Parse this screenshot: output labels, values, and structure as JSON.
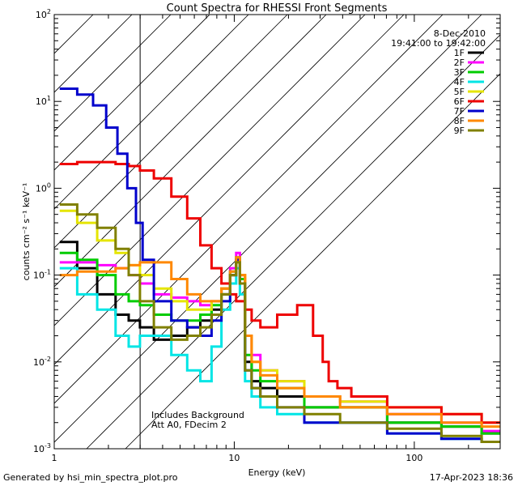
{
  "chart_data": {
    "type": "line",
    "title": "Count Spectra for RHESSI Front Segments",
    "xlabel": "Energy (keV)",
    "ylabel": "counts cm⁻² s⁻¹ keV⁻¹",
    "xscale": "log",
    "yscale": "log",
    "xlim": [
      1,
      300
    ],
    "ylim": [
      0.001,
      100
    ],
    "x_tick_labels": [
      {
        "value": 1,
        "label": "1"
      },
      {
        "value": 10,
        "label": "10"
      },
      {
        "value": 100,
        "label": "100"
      }
    ],
    "y_tick_labels": [
      {
        "value": 0.001,
        "base": "10",
        "exp": "-3"
      },
      {
        "value": 0.01,
        "base": "10",
        "exp": "-2"
      },
      {
        "value": 0.1,
        "base": "10",
        "exp": "-1"
      },
      {
        "value": 1,
        "base": "10",
        "exp": "0"
      },
      {
        "value": 10,
        "base": "10",
        "exp": "1"
      },
      {
        "value": 100,
        "base": "10",
        "exp": "2"
      }
    ],
    "date": "8-Dec-2010",
    "time_range": "19:41:00 to 19:42:00",
    "excluded_region": {
      "x_min": 1,
      "x_max": 3
    },
    "annotations": [
      "Includes Background",
      "Att A0, FDecim 2"
    ],
    "legend_position": "top-right",
    "series": [
      {
        "name": "1F",
        "color": "#000000",
        "x": [
          1.2,
          1.5,
          2,
          2.4,
          2.8,
          3.2,
          4,
          5,
          6,
          7,
          8,
          9,
          10,
          10.5,
          11,
          12,
          13,
          15,
          20,
          30,
          50,
          100,
          200,
          280
        ],
        "values": [
          0.24,
          0.12,
          0.06,
          0.035,
          0.03,
          0.025,
          0.018,
          0.02,
          0.025,
          0.03,
          0.04,
          0.06,
          0.1,
          0.15,
          0.08,
          0.01,
          0.006,
          0.005,
          0.004,
          0.003,
          0.003,
          0.002,
          0.0018,
          0.0015
        ]
      },
      {
        "name": "2F",
        "color": "#ff00ff",
        "x": [
          1.2,
          1.5,
          2,
          2.4,
          2.8,
          3.2,
          4,
          5,
          6,
          7,
          8,
          9,
          10,
          10.5,
          11,
          12,
          13,
          15,
          20,
          30,
          50,
          100,
          200,
          280
        ],
        "values": [
          0.14,
          0.14,
          0.13,
          0.12,
          0.1,
          0.08,
          0.06,
          0.055,
          0.05,
          0.045,
          0.05,
          0.07,
          0.12,
          0.18,
          0.1,
          0.02,
          0.012,
          0.008,
          0.006,
          0.004,
          0.0035,
          0.0025,
          0.002,
          0.0016
        ]
      },
      {
        "name": "3F",
        "color": "#00cc00",
        "x": [
          1.2,
          1.5,
          2,
          2.4,
          2.8,
          3.2,
          4,
          5,
          6,
          7,
          8,
          9,
          10,
          10.5,
          11,
          12,
          13,
          15,
          20,
          30,
          50,
          100,
          200,
          280
        ],
        "values": [
          0.18,
          0.15,
          0.1,
          0.06,
          0.05,
          0.045,
          0.035,
          0.03,
          0.03,
          0.035,
          0.045,
          0.07,
          0.11,
          0.16,
          0.09,
          0.012,
          0.008,
          0.006,
          0.005,
          0.003,
          0.003,
          0.002,
          0.0018,
          0.0015
        ]
      },
      {
        "name": "4F",
        "color": "#00e5e5",
        "x": [
          1.2,
          1.5,
          2,
          2.4,
          2.8,
          3.2,
          4,
          5,
          6,
          7,
          8,
          9,
          10,
          10.5,
          11,
          12,
          13,
          15,
          20,
          30,
          50,
          100,
          200,
          280
        ],
        "values": [
          0.12,
          0.06,
          0.04,
          0.02,
          0.015,
          0.02,
          0.02,
          0.012,
          0.008,
          0.006,
          0.015,
          0.04,
          0.08,
          0.12,
          0.06,
          0.006,
          0.004,
          0.003,
          0.0025,
          0.002,
          0.002,
          0.0015,
          0.0013,
          0.0012
        ]
      },
      {
        "name": "5F",
        "color": "#e5e500",
        "x": [
          1.2,
          1.5,
          2,
          2.4,
          2.8,
          3.2,
          4,
          5,
          6,
          7,
          8,
          9,
          10,
          10.5,
          11,
          12,
          13,
          15,
          20,
          30,
          50,
          100,
          200,
          280
        ],
        "values": [
          0.55,
          0.4,
          0.25,
          0.18,
          0.13,
          0.1,
          0.07,
          0.05,
          0.04,
          0.04,
          0.05,
          0.07,
          0.1,
          0.15,
          0.1,
          0.02,
          0.01,
          0.008,
          0.006,
          0.004,
          0.0035,
          0.003,
          0.0025,
          0.002
        ]
      },
      {
        "name": "6F",
        "color": "#ee0000",
        "x": [
          1.2,
          1.5,
          2,
          2.4,
          2.8,
          3.2,
          4,
          5,
          6,
          7,
          8,
          9,
          10,
          10.5,
          11,
          12,
          13,
          15,
          20,
          25,
          30,
          32,
          35,
          40,
          50,
          100,
          200,
          280
        ],
        "values": [
          1.9,
          2.0,
          2.0,
          1.9,
          1.8,
          1.6,
          1.3,
          0.8,
          0.45,
          0.22,
          0.12,
          0.08,
          0.06,
          0.05,
          0.05,
          0.04,
          0.03,
          0.025,
          0.035,
          0.045,
          0.02,
          0.01,
          0.006,
          0.005,
          0.004,
          0.003,
          0.0025,
          0.002
        ]
      },
      {
        "name": "7F",
        "color": "#0000cc",
        "x": [
          1.2,
          1.5,
          1.8,
          2.1,
          2.4,
          2.7,
          3.0,
          3.2,
          4,
          5,
          6,
          7,
          8,
          9,
          10,
          10.5,
          11,
          12,
          13,
          15,
          20,
          30,
          50,
          100,
          200,
          280
        ],
        "values": [
          14,
          12,
          9,
          5,
          2.5,
          1.0,
          0.4,
          0.15,
          0.05,
          0.03,
          0.025,
          0.02,
          0.03,
          0.05,
          0.1,
          0.15,
          0.08,
          0.008,
          0.005,
          0.004,
          0.003,
          0.002,
          0.002,
          0.0015,
          0.0013,
          0.0012
        ]
      },
      {
        "name": "8F",
        "color": "#ff8800",
        "x": [
          1.2,
          1.5,
          2,
          2.4,
          2.8,
          3.2,
          4,
          5,
          6,
          7,
          8,
          9,
          10,
          10.5,
          11,
          12,
          13,
          15,
          20,
          30,
          50,
          100,
          200,
          280
        ],
        "values": [
          0.1,
          0.11,
          0.11,
          0.12,
          0.13,
          0.14,
          0.14,
          0.09,
          0.06,
          0.05,
          0.05,
          0.07,
          0.11,
          0.16,
          0.1,
          0.02,
          0.01,
          0.007,
          0.005,
          0.004,
          0.003,
          0.0025,
          0.002,
          0.0018
        ]
      },
      {
        "name": "9F",
        "color": "#808000",
        "x": [
          1.2,
          1.5,
          2,
          2.4,
          2.8,
          3.2,
          4,
          5,
          6,
          7,
          8,
          9,
          10,
          10.5,
          11,
          12,
          13,
          15,
          20,
          30,
          50,
          100,
          200,
          280
        ],
        "values": [
          0.65,
          0.5,
          0.35,
          0.2,
          0.1,
          0.05,
          0.025,
          0.018,
          0.02,
          0.025,
          0.035,
          0.06,
          0.1,
          0.14,
          0.08,
          0.008,
          0.005,
          0.004,
          0.003,
          0.0025,
          0.002,
          0.0017,
          0.0014,
          0.0012
        ]
      }
    ]
  },
  "footer": {
    "left": "Generated by hsi_min_spectra_plot.pro",
    "right": "17-Apr-2023 18:36"
  }
}
